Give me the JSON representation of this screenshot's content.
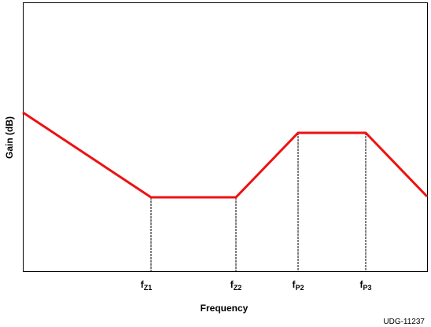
{
  "y_axis_label": "Gain (dB)",
  "x_axis_label": "Frequency",
  "markers": [
    {
      "main": "f",
      "sub": "Z1"
    },
    {
      "main": "f",
      "sub": "Z2"
    },
    {
      "main": "f",
      "sub": "P2"
    },
    {
      "main": "f",
      "sub": "P3"
    }
  ],
  "figure_id": "UDG-11237"
}
